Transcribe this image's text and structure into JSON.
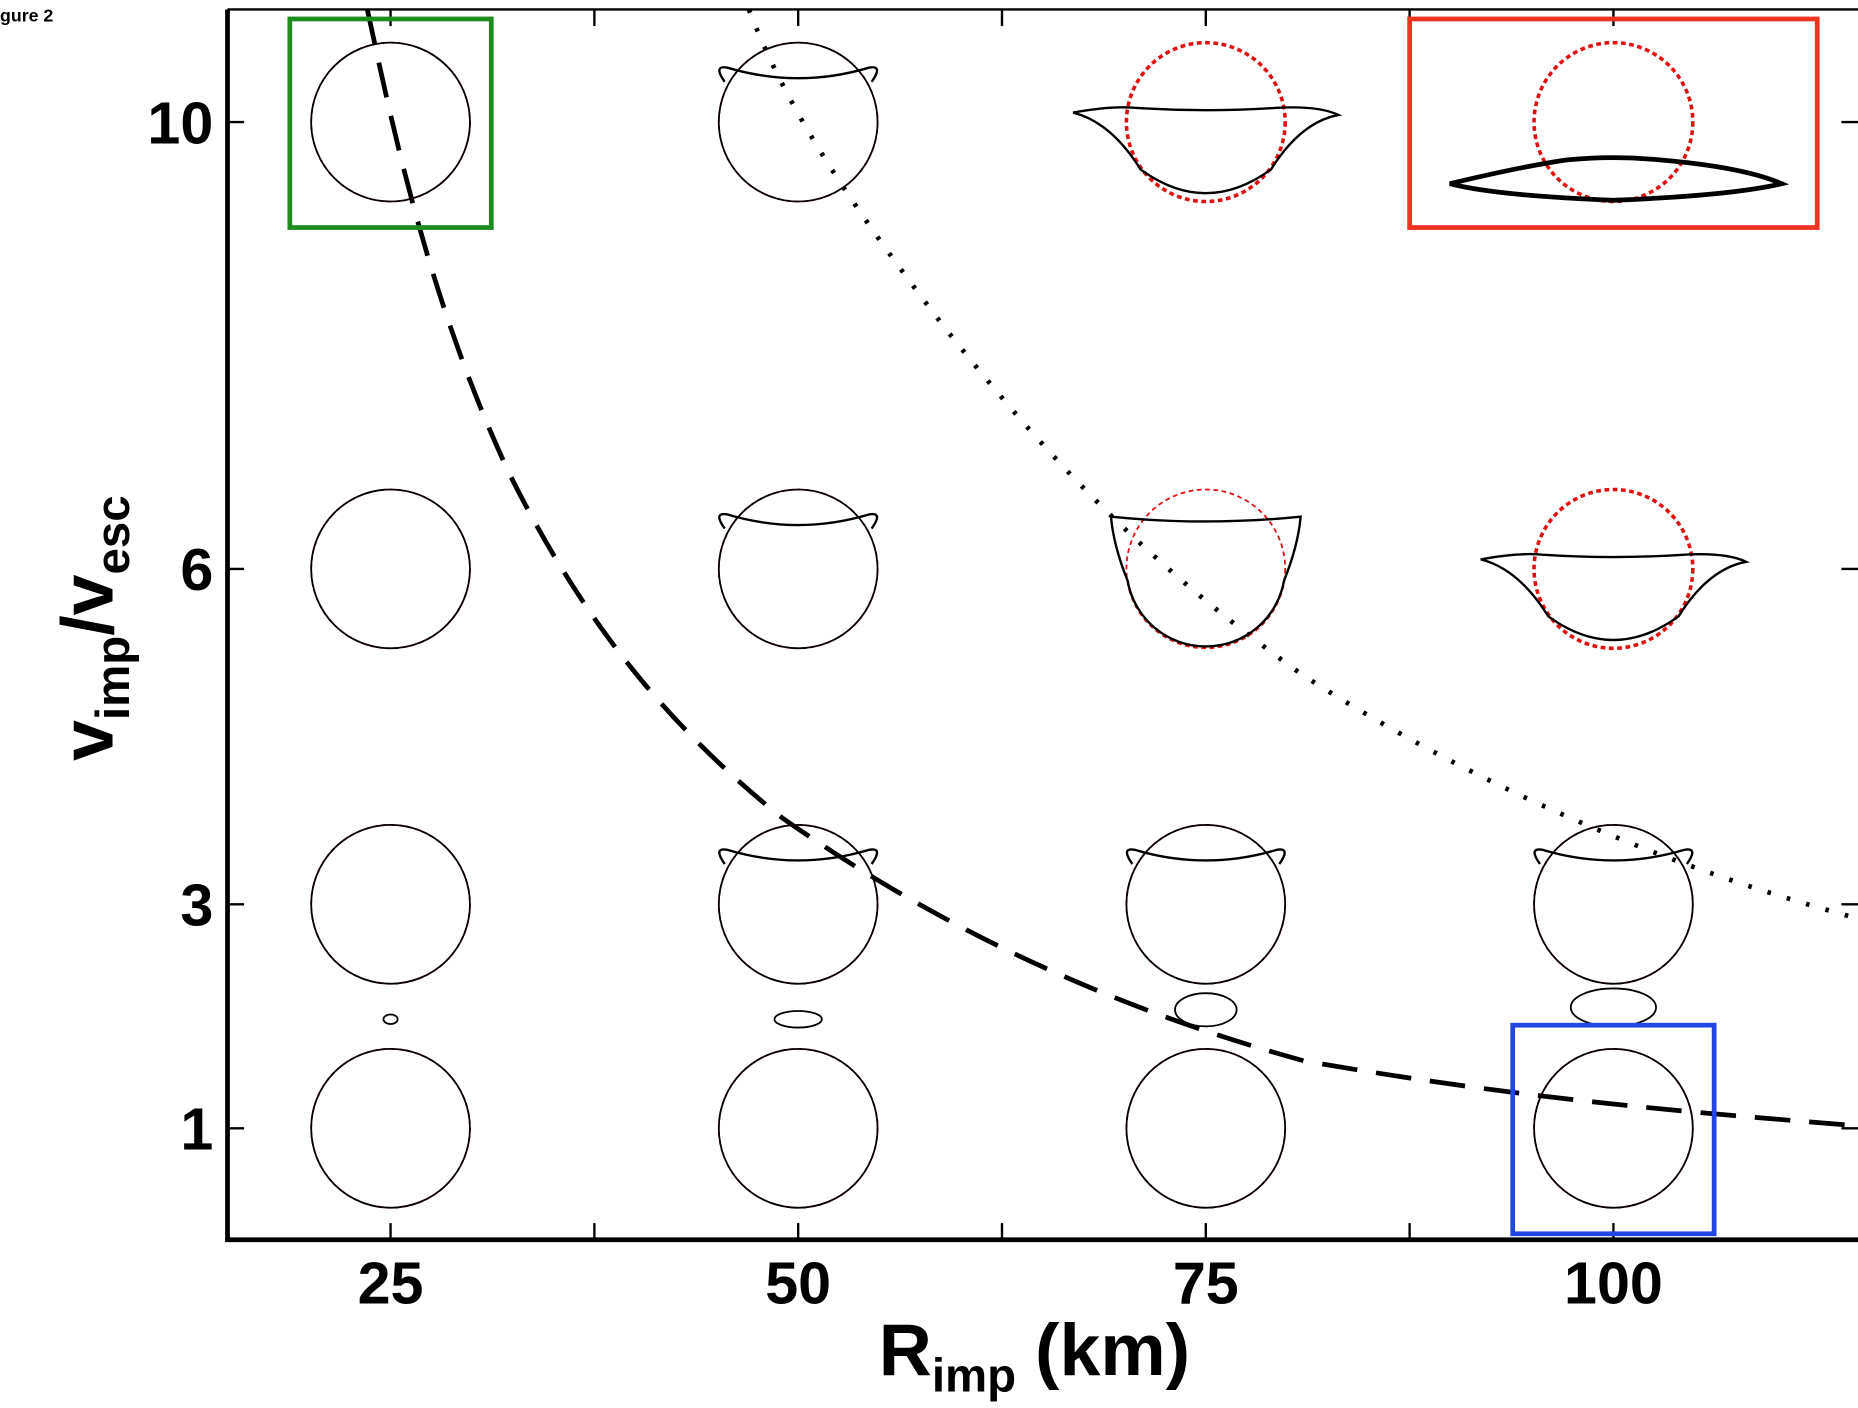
{
  "figure_label": "gure 2",
  "chart_data": {
    "type": "scatter",
    "x_label": {
      "parts": [
        "R",
        "imp",
        "(km)"
      ]
    },
    "y_label": {
      "parts": [
        "v",
        "imp",
        "/v",
        "esc"
      ]
    },
    "xlim": [
      15,
      115
    ],
    "xticks": [
      25,
      50,
      75,
      100
    ],
    "yticks": [
      1,
      3,
      6,
      10
    ],
    "x": [
      25,
      50,
      75,
      100,
      25,
      50,
      75,
      100,
      25,
      50,
      75,
      100,
      25,
      50,
      75,
      100
    ],
    "y": [
      1,
      1,
      1,
      1,
      3,
      3,
      3,
      3,
      6,
      6,
      6,
      6,
      10,
      10,
      10,
      10
    ],
    "highlights": [
      {
        "x": 25,
        "y": 10,
        "color": "#1e8c1e"
      },
      {
        "x": 100,
        "y": 10,
        "color": "#ee3420"
      },
      {
        "x": 100,
        "y": 1,
        "color": "#2345e6"
      }
    ]
  }
}
